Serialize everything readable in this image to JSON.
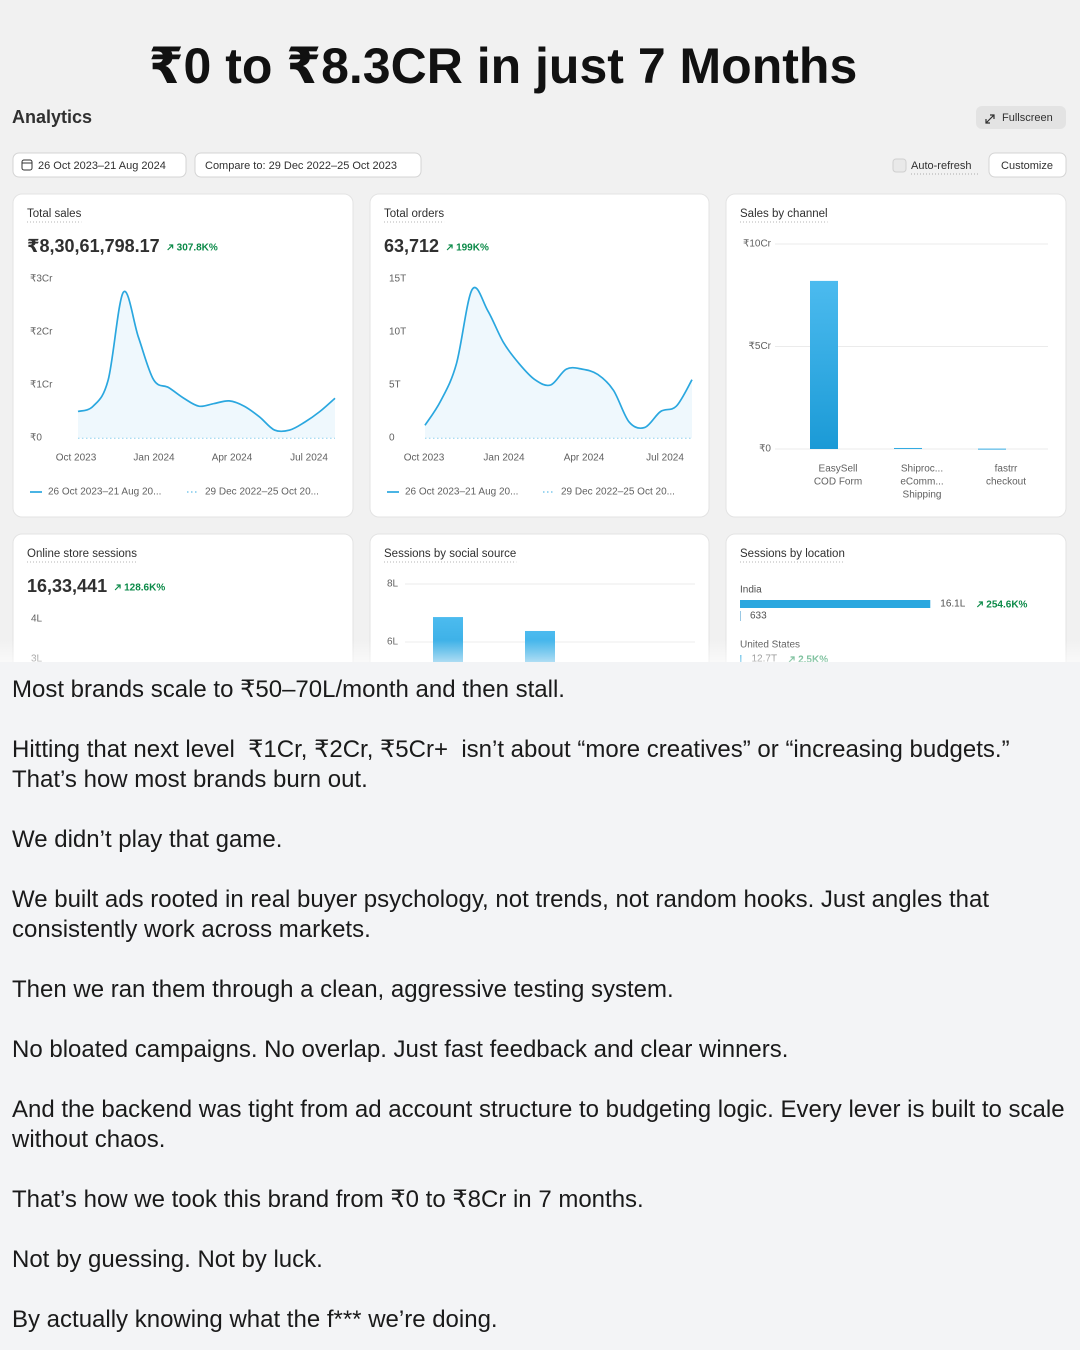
{
  "headline": "₹0 to ₹8.3CR in just 7 Months",
  "toolbar": {
    "title": "Analytics",
    "fullscreen": "Fullscreen",
    "date_range": "26 Oct 2023–21 Aug 2024",
    "compare": "Compare to: 29 Dec 2022–25 Oct 2023",
    "auto_refresh": "Auto-refresh",
    "customize": "Customize"
  },
  "chart_data": [
    {
      "type": "line",
      "title": "Total sales",
      "total": "₹8,30,61,798.17",
      "change": "307.8K%",
      "xticks": [
        "Oct 2023",
        "Jan 2024",
        "Apr 2024",
        "Jul 2024"
      ],
      "ylim": [
        0,
        3
      ],
      "yticks": [
        {
          "value": 3,
          "label": "₹3Cr"
        },
        {
          "value": 2,
          "label": "₹2Cr"
        },
        {
          "value": 1,
          "label": "₹1Cr"
        },
        {
          "value": 0,
          "label": "₹0"
        }
      ],
      "series": [
        {
          "name": "26 Oct 2023–21 Aug 20...",
          "color": "#2aa7df",
          "dashed": false,
          "values": [
            0.5,
            0.6,
            1.1,
            2.75,
            1.9,
            1.1,
            0.95,
            0.75,
            0.6,
            0.65,
            0.7,
            0.6,
            0.4,
            0.15,
            0.15,
            0.3,
            0.5,
            0.75
          ]
        },
        {
          "name": "29 Dec 2022–25 Oct 20...",
          "color": "#8fd0ee",
          "dashed": true,
          "values": [
            0,
            0,
            0,
            0,
            0,
            0,
            0,
            0,
            0,
            0,
            0,
            0,
            0,
            0,
            0,
            0,
            0,
            0
          ]
        }
      ]
    },
    {
      "type": "line",
      "title": "Total orders",
      "total": "63,712",
      "change": "199K%",
      "xticks": [
        "Oct 2023",
        "Jan 2024",
        "Apr 2024",
        "Jul 2024"
      ],
      "ylim": [
        0,
        15
      ],
      "yticks": [
        {
          "value": 15,
          "label": "15T"
        },
        {
          "value": 10,
          "label": "10T"
        },
        {
          "value": 5,
          "label": "5T"
        },
        0
      ],
      "series": [
        {
          "name": "26 Oct 2023–21 Aug 20...",
          "color": "#2aa7df",
          "dashed": false,
          "values": [
            1.2,
            3.5,
            7,
            14,
            12,
            9,
            7,
            5.5,
            5,
            6.5,
            6.5,
            6,
            4.5,
            1.5,
            1,
            2.5,
            3,
            5.5
          ]
        },
        {
          "name": "29 Dec 2022–25 Oct 20...",
          "color": "#8fd0ee",
          "dashed": true,
          "values": [
            0,
            0,
            0,
            0,
            0,
            0,
            0,
            0,
            0,
            0,
            0,
            0,
            0,
            0,
            0,
            0,
            0,
            0
          ]
        }
      ]
    },
    {
      "type": "bar",
      "title": "Sales by channel",
      "categories": [
        [
          "EasySell",
          "COD Form"
        ],
        [
          "Shiproc...",
          "eComm...",
          "Shipping"
        ],
        [
          "fastrr",
          "checkout"
        ]
      ],
      "values": [
        8.2,
        0.05,
        0.02
      ],
      "color": "#2aa7df",
      "ylim": [
        0,
        10
      ],
      "yticks": [
        {
          "value": 10,
          "label": "₹10Cr"
        },
        {
          "value": 5,
          "label": "₹5Cr"
        },
        {
          "value": 0,
          "label": "₹0"
        }
      ],
      "grid": true
    },
    {
      "type": "line",
      "title": "Online store sessions",
      "total": "16,33,441",
      "change": "128.6K%",
      "ylim": [
        3,
        4
      ],
      "yticks": [
        {
          "value": 4,
          "label": "4L"
        },
        {
          "value": 3,
          "label": "3L"
        }
      ]
    },
    {
      "type": "bar",
      "title": "Sessions by social source",
      "values": [
        6.86,
        6.38
      ],
      "color": "#2aa7df",
      "ylim": [
        6,
        8
      ],
      "yticks": [
        {
          "value": 8,
          "label": "8L"
        },
        {
          "value": 6,
          "label": "6L"
        }
      ],
      "grid": true
    },
    {
      "type": "hbar",
      "title": "Sessions by location",
      "categories": [
        "India",
        "United States"
      ],
      "values": [
        1610,
        12.7
      ],
      "value_labels": [
        "16.1L",
        "12.7T"
      ],
      "changes": [
        "254.6K%",
        "2.5K%"
      ],
      "previous": [
        "633",
        null
      ],
      "color": "#2aa7df",
      "xlim": [
        0,
        1650
      ]
    }
  ],
  "body": [
    "Most brands scale to ₹50–70L/month and then stall.",
    "Hitting that next level  ₹1Cr, ₹2Cr, ₹5Cr+  isn’t about “more creatives” or “increasing budgets.” That’s how most brands burn out.",
    "We didn’t play that game.",
    "We built ads rooted in real buyer psychology, not trends, not random hooks. Just angles that consistently work across markets.",
    "Then we ran them through a clean, aggressive testing system.",
    "No bloated campaigns. No overlap. Just fast feedback and clear winners.",
    "And the backend was tight from ad account structure to budgeting logic. Every lever is built to scale without chaos.",
    "That’s how we took this brand from ₹0 to ₹8Cr in 7 months.",
    "Not by guessing. Not by luck.",
    "By actually knowing what the f*** we’re doing."
  ]
}
